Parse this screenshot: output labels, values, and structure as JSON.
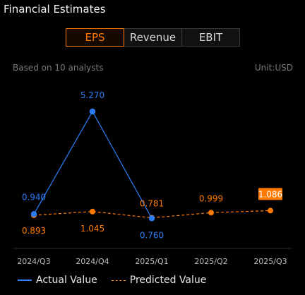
{
  "header": {
    "title": "Financial Estimates"
  },
  "tabs": [
    {
      "label": "EPS",
      "active": true
    },
    {
      "label": "Revenue",
      "active": false
    },
    {
      "label": "EBIT",
      "active": false
    }
  ],
  "info": {
    "analysts": "Based on 10 analysts",
    "unit": "Unit:USD"
  },
  "legend": {
    "actual": "Actual Value",
    "predicted": "Predicted Value"
  },
  "colors": {
    "actual": "#2b7cf5",
    "predicted": "#ff7a00",
    "highlight_bg": "#ff7a00"
  },
  "chart_data": {
    "type": "line",
    "categories": [
      "2024/Q3",
      "2024/Q4",
      "2025/Q1",
      "2025/Q2",
      "2025/Q3"
    ],
    "series": [
      {
        "name": "Actual Value",
        "values": [
          0.94,
          5.27,
          0.76,
          null,
          null
        ],
        "labels": [
          "0.940",
          "5.270",
          "0.760",
          "",
          ""
        ],
        "style": "solid"
      },
      {
        "name": "Predicted Value",
        "values": [
          0.893,
          1.045,
          0.781,
          0.999,
          1.086
        ],
        "labels": [
          "0.893",
          "1.045",
          "0.781",
          "0.999",
          "1.086"
        ],
        "style": "dashed"
      }
    ],
    "highlight_index": 4,
    "grid": false
  }
}
